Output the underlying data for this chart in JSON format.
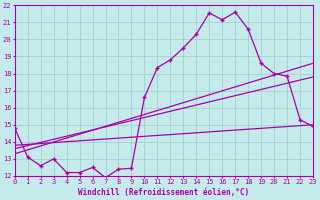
{
  "xlabel": "Windchill (Refroidissement éolien,°C)",
  "xlim": [
    0,
    23
  ],
  "ylim": [
    12,
    22
  ],
  "yticks": [
    12,
    13,
    14,
    15,
    16,
    17,
    18,
    19,
    20,
    21,
    22
  ],
  "xticks": [
    0,
    1,
    2,
    3,
    4,
    5,
    6,
    7,
    8,
    9,
    10,
    11,
    12,
    13,
    14,
    15,
    16,
    17,
    18,
    19,
    20,
    21,
    22,
    23
  ],
  "background_color": "#c5eaea",
  "grid_color": "#a8d4d4",
  "line_color": "#aa00aa",
  "zigzag_x": [
    0,
    1,
    2,
    3,
    4,
    5,
    6,
    7,
    8,
    9,
    10,
    11,
    12,
    13,
    14,
    15,
    16,
    17,
    18,
    19,
    20,
    21,
    22,
    23
  ],
  "zigzag_y": [
    14.8,
    13.1,
    12.6,
    13.0,
    12.2,
    12.2,
    12.5,
    11.9,
    12.4,
    12.45,
    16.6,
    18.35,
    18.8,
    19.5,
    20.3,
    21.55,
    21.15,
    21.6,
    20.6,
    18.6,
    18.0,
    17.85,
    15.3,
    14.9
  ],
  "line1_x": [
    0,
    23
  ],
  "line1_y": [
    13.3,
    18.6
  ],
  "line2_x": [
    0,
    23
  ],
  "line2_y": [
    13.6,
    17.8
  ],
  "line3_x": [
    0,
    23
  ],
  "line3_y": [
    13.8,
    15.0
  ]
}
